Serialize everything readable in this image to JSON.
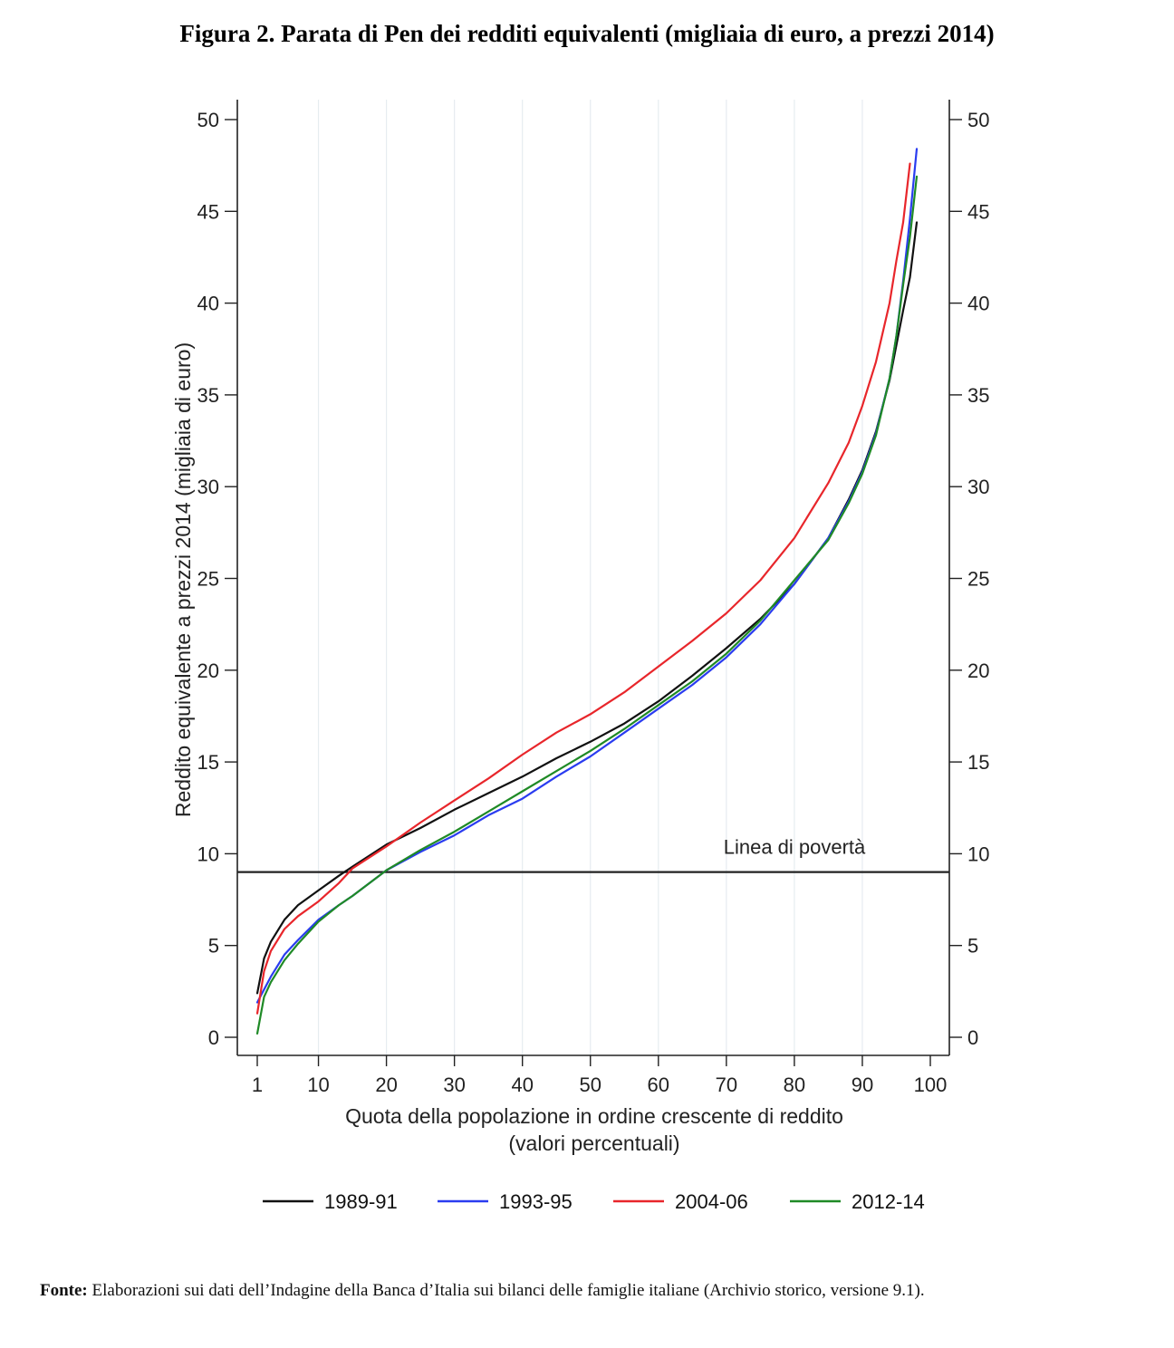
{
  "figure": {
    "title": "Figura 2. Parata di Pen dei redditi equivalenti (migliaia di euro, a prezzi 2014)",
    "source_label": "Fonte:",
    "source_text": "Elaborazioni sui dati dell’Indagine della Banca d’Italia sui bilanci delle famiglie italiane (Archivio storico, versione 9.1)."
  },
  "chart_data": {
    "type": "line",
    "xlabel": "Quota della popolazione in ordine crescente di reddito",
    "xlabel2": "(valori percentuali)",
    "ylabel": "Reddito equivalente a prezzi 2014 (migliaia di euro)",
    "xlim": [
      1,
      100
    ],
    "ylim": [
      0,
      50
    ],
    "xticks": [
      1,
      10,
      20,
      30,
      40,
      50,
      60,
      70,
      80,
      90,
      100
    ],
    "yticks": [
      0,
      5,
      10,
      15,
      20,
      25,
      30,
      35,
      40,
      45,
      50
    ],
    "grid": "vertical",
    "secondary_y_axis": true,
    "reference_line": {
      "label": "Linea di povertà",
      "y": 9
    },
    "legend_position": "bottom",
    "x": [
      1,
      2,
      3,
      5,
      7,
      10,
      13,
      15,
      20,
      25,
      30,
      35,
      40,
      45,
      50,
      55,
      60,
      65,
      70,
      75,
      80,
      85,
      88,
      90,
      92,
      94,
      95,
      96,
      97,
      98
    ],
    "series": [
      {
        "name": "1989-91",
        "color": "#111111",
        "values": [
          2.4,
          4.3,
          5.2,
          6.4,
          7.2,
          8.0,
          8.8,
          9.3,
          10.5,
          11.4,
          12.4,
          13.3,
          14.2,
          15.2,
          16.1,
          17.1,
          18.3,
          19.7,
          21.2,
          22.8,
          24.7,
          27.2,
          29.3,
          30.9,
          33.0,
          35.8,
          37.7,
          39.6,
          41.4,
          44.4
        ]
      },
      {
        "name": "1993-95",
        "color": "#2a3cf0",
        "values": [
          1.9,
          2.6,
          3.3,
          4.5,
          5.3,
          6.4,
          7.2,
          7.7,
          9.1,
          10.1,
          11.0,
          12.1,
          13.0,
          14.2,
          15.3,
          16.6,
          17.9,
          19.2,
          20.7,
          22.5,
          24.7,
          27.2,
          29.2,
          30.8,
          32.9,
          35.9,
          38.2,
          41.2,
          44.6,
          48.4
        ]
      },
      {
        "name": "2004-06",
        "color": "#e8262b",
        "values": [
          1.3,
          3.6,
          4.7,
          5.9,
          6.6,
          7.4,
          8.4,
          9.2,
          10.4,
          11.7,
          12.9,
          14.1,
          15.4,
          16.6,
          17.6,
          18.8,
          20.2,
          21.6,
          23.1,
          24.9,
          27.2,
          30.2,
          32.4,
          34.4,
          36.8,
          40.0,
          42.3,
          44.4,
          47.6,
          null
        ]
      },
      {
        "name": "2012-14",
        "color": "#1f8a26",
        "values": [
          0.2,
          2.2,
          3.0,
          4.2,
          5.1,
          6.3,
          7.2,
          7.7,
          9.1,
          10.2,
          11.2,
          12.3,
          13.4,
          14.5,
          15.6,
          16.8,
          18.1,
          19.4,
          20.9,
          22.7,
          24.9,
          27.1,
          29.1,
          30.7,
          32.8,
          35.9,
          38.2,
          41.0,
          43.6,
          46.9
        ]
      }
    ]
  }
}
